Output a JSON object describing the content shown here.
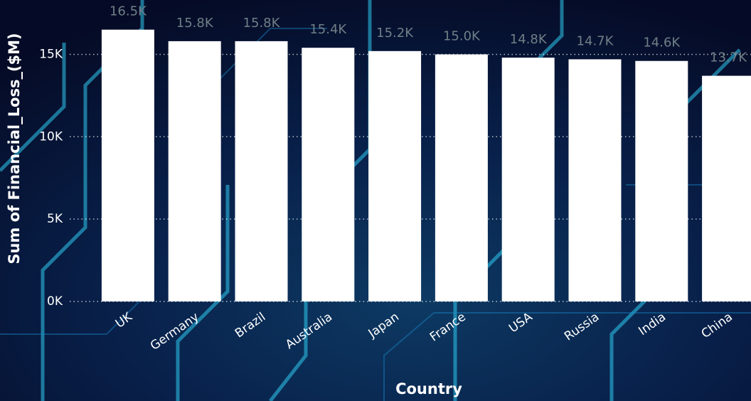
{
  "chart_data": {
    "type": "bar",
    "x_label": "Country",
    "y_label": "Sum of Financial_Loss_($M)",
    "categories": [
      "UK",
      "Germany",
      "Brazil",
      "Australia",
      "Japan",
      "France",
      "USA",
      "Russia",
      "India",
      "China"
    ],
    "values": [
      16500,
      15800,
      15800,
      15400,
      15200,
      15000,
      14800,
      14700,
      14600,
      13700
    ],
    "value_labels": [
      "16.5K",
      "15.8K",
      "15.8K",
      "15.4K",
      "15.2K",
      "15.0K",
      "14.8K",
      "14.7K",
      "14.6K",
      "13.7K"
    ],
    "color": "#ffffff",
    "ylim": [
      0,
      18300
    ],
    "yticks": [
      {
        "value": 0,
        "label": "0K"
      },
      {
        "value": 5000,
        "label": "5K"
      },
      {
        "value": 10000,
        "label": "10K"
      },
      {
        "value": 15000,
        "label": "15K"
      }
    ],
    "grid": true
  }
}
